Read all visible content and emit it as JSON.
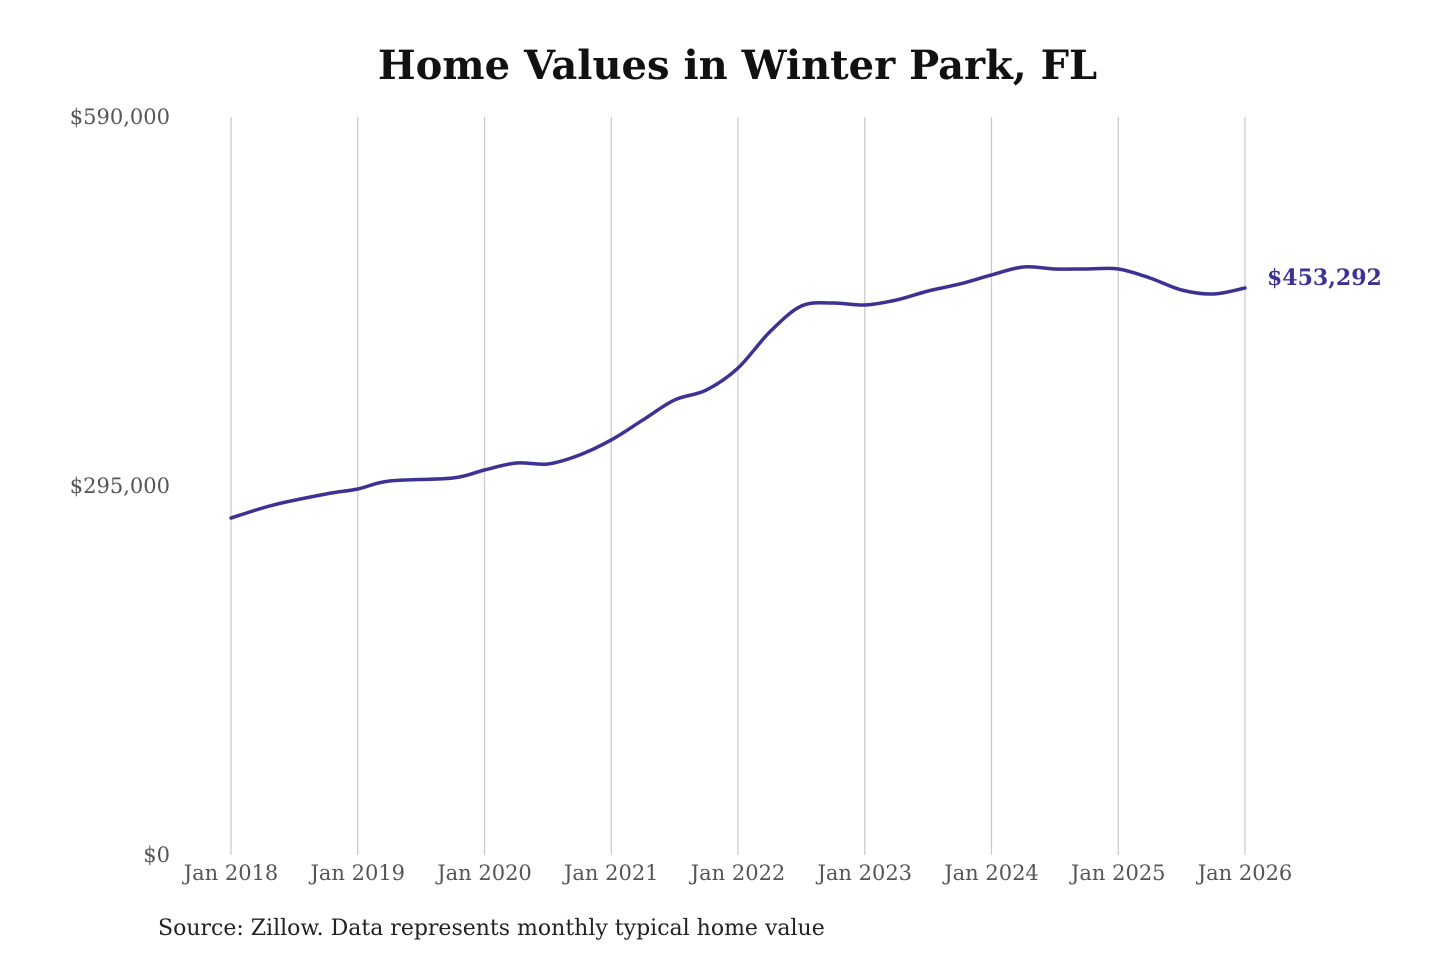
{
  "chart_data": {
    "type": "line",
    "title": "Home Values in Winter Park, FL",
    "xlabel": "",
    "ylabel": "",
    "x_ticks": [
      "Jan 2018",
      "Jan 2019",
      "Jan 2020",
      "Jan 2021",
      "Jan 2022",
      "Jan 2023",
      "Jan 2024",
      "Jan 2025",
      "Jan 2026"
    ],
    "y_ticks": [
      0,
      295000,
      590000
    ],
    "y_tick_labels": [
      "$0",
      "$295,000",
      "$590,000"
    ],
    "ylim": [
      0,
      590000
    ],
    "xlim": [
      "2018-01",
      "2026-01"
    ],
    "grid": "vertical",
    "color": "#3b3394",
    "end_label": "$453,292",
    "series": [
      {
        "x": [
          "2018-01",
          "2018-05",
          "2018-10",
          "2019-01",
          "2019-04",
          "2019-10",
          "2020-01",
          "2020-04",
          "2020-07",
          "2020-10",
          "2021-01",
          "2021-04",
          "2021-07",
          "2021-10",
          "2022-01",
          "2022-04",
          "2022-07",
          "2022-10",
          "2023-01",
          "2023-04",
          "2023-07",
          "2023-10",
          "2024-01",
          "2024-04",
          "2024-07",
          "2024-10",
          "2025-01",
          "2025-04",
          "2025-07",
          "2025-10",
          "2026-01"
        ],
        "values": [
          269400,
          279800,
          288600,
          292600,
          299000,
          301400,
          307800,
          313400,
          312600,
          319800,
          331800,
          347800,
          363800,
          371700,
          389300,
          418100,
          438900,
          441300,
          439700,
          443700,
          450900,
          456500,
          463700,
          470100,
          468500,
          468500,
          468500,
          461300,
          451700,
          448500,
          453292
        ]
      }
    ]
  },
  "source": "Source: Zillow. Data represents monthly typical home value"
}
